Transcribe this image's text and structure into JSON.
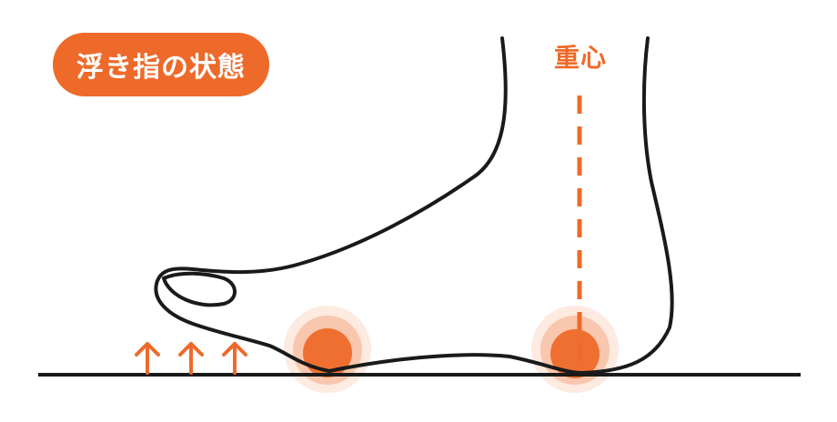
{
  "badge": {
    "label": "浮き指の状態"
  },
  "center_of_gravity": {
    "label": "重心"
  },
  "colors": {
    "accent": "#ee6a2a",
    "pressure": "#ee6a2a",
    "outline": "#1a1a1a",
    "ground": "#1a1a1a"
  },
  "icons": [
    "up-arrow-icon",
    "pressure-circle",
    "dashed-gravity-line"
  ]
}
